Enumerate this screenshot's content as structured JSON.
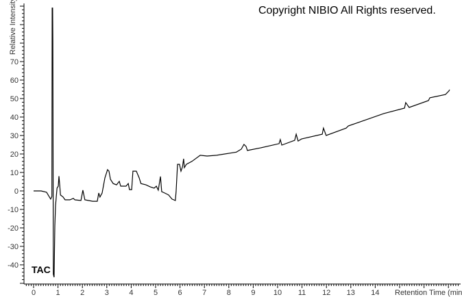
{
  "copyright": "Copyright NIBIO All Rights reserved.",
  "chart_data": {
    "type": "line",
    "title": "",
    "xlabel": "Retention Time (min)",
    "ylabel": "Relative Intensity",
    "xlim": [
      0,
      17.3
    ],
    "ylim": [
      -50,
      101
    ],
    "x_ticks": [
      0,
      1,
      2,
      3,
      4,
      5,
      6,
      7,
      8,
      9,
      10,
      11,
      12,
      13,
      14
    ],
    "y_ticks": [
      -40,
      -30,
      -20,
      -10,
      0,
      10,
      20,
      30,
      40,
      50,
      60,
      70
    ],
    "grid": false,
    "line_color": "#000000",
    "series": [
      {
        "name": "TAC",
        "points": [
          [
            0,
            0
          ],
          [
            0.31,
            0
          ],
          [
            0.53,
            -0.7
          ],
          [
            0.65,
            -3.3
          ],
          [
            0.7,
            -4.4
          ],
          [
            0.75,
            -3
          ],
          [
            0.76,
            99
          ],
          [
            0.78,
            99
          ],
          [
            0.79,
            81
          ],
          [
            0.81,
            -45
          ],
          [
            0.84,
            -46.7
          ],
          [
            0.87,
            -19
          ],
          [
            0.9,
            -8
          ],
          [
            0.96,
            1.5
          ],
          [
            1.01,
            2.6
          ],
          [
            1.04,
            8
          ],
          [
            1.07,
            3.3
          ],
          [
            1.1,
            -2.2
          ],
          [
            1.21,
            -3.3
          ],
          [
            1.29,
            -4.8
          ],
          [
            1.49,
            -4.8
          ],
          [
            1.63,
            -4
          ],
          [
            1.69,
            -4.8
          ],
          [
            1.94,
            -5.2
          ],
          [
            2.02,
            0.4
          ],
          [
            2.1,
            -4.8
          ],
          [
            2.42,
            -5.6
          ],
          [
            2.61,
            -5.6
          ],
          [
            2.67,
            -1.1
          ],
          [
            2.72,
            -3.3
          ],
          [
            2.81,
            -1.1
          ],
          [
            2.92,
            7
          ],
          [
            3.03,
            11.5
          ],
          [
            3.09,
            10.7
          ],
          [
            3.15,
            6.3
          ],
          [
            3.26,
            4
          ],
          [
            3.4,
            3.3
          ],
          [
            3.51,
            5.2
          ],
          [
            3.57,
            2.6
          ],
          [
            3.79,
            2.6
          ],
          [
            3.88,
            4
          ],
          [
            3.93,
            0.7
          ],
          [
            4.02,
            0.7
          ],
          [
            4.07,
            10.7
          ],
          [
            4.21,
            10.7
          ],
          [
            4.33,
            7
          ],
          [
            4.4,
            4
          ],
          [
            4.6,
            3.3
          ],
          [
            4.78,
            2.2
          ],
          [
            4.94,
            1.5
          ],
          [
            5.03,
            2.6
          ],
          [
            5.11,
            0.4
          ],
          [
            5.2,
            7.8
          ],
          [
            5.25,
            -0.4
          ],
          [
            5.37,
            -1.1
          ],
          [
            5.53,
            -2.2
          ],
          [
            5.67,
            -4.4
          ],
          [
            5.81,
            -5.2
          ],
          [
            5.84,
            -0.4
          ],
          [
            5.9,
            14.4
          ],
          [
            5.98,
            14.4
          ],
          [
            6.04,
            10.7
          ],
          [
            6.1,
            13
          ],
          [
            6.15,
            17.4
          ],
          [
            6.18,
            12.6
          ],
          [
            6.26,
            14.4
          ],
          [
            6.49,
            16
          ],
          [
            6.83,
            19.3
          ],
          [
            7.11,
            18.9
          ],
          [
            7.5,
            19.3
          ],
          [
            8.31,
            21
          ],
          [
            8.51,
            22.6
          ],
          [
            8.62,
            25.2
          ],
          [
            8.71,
            24
          ],
          [
            8.76,
            21.9
          ],
          [
            9.3,
            23.3
          ],
          [
            10.06,
            25.6
          ],
          [
            10.11,
            27.8
          ],
          [
            10.17,
            24.8
          ],
          [
            10.7,
            27.4
          ],
          [
            10.76,
            30.7
          ],
          [
            10.84,
            27
          ],
          [
            10.98,
            28.1
          ],
          [
            11.83,
            30.7
          ],
          [
            11.88,
            34
          ],
          [
            11.99,
            30
          ],
          [
            12.81,
            34
          ],
          [
            12.9,
            35.2
          ],
          [
            13.23,
            36.7
          ],
          [
            14.35,
            41.9
          ],
          [
            15.2,
            44.8
          ],
          [
            15.25,
            47.8
          ],
          [
            15.39,
            45.2
          ],
          [
            16.18,
            48.9
          ],
          [
            16.24,
            50.4
          ],
          [
            16.88,
            52.2
          ],
          [
            17.02,
            54.1
          ],
          [
            17.05,
            54.8
          ]
        ]
      }
    ]
  }
}
